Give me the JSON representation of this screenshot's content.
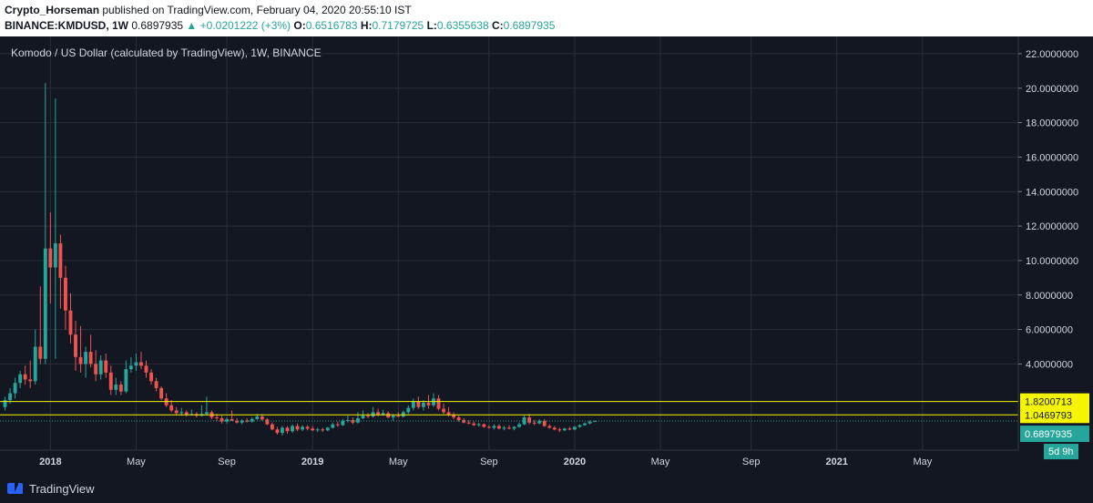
{
  "header": {
    "author": "Crypto_Horseman",
    "published_text": "published on TradingView.com, February 04, 2020 20:55:10 IST",
    "symbol": "BINANCE:KMDUSD, 1W",
    "last": "0.6897935",
    "change": "▲ +0.0201222 (+3%)",
    "o_label": "O:",
    "o_value": "0.6516783",
    "h_label": "H:",
    "h_value": "0.7179725",
    "l_label": "L:",
    "l_value": "0.6355638",
    "c_label": "C:",
    "c_value": "0.6897935"
  },
  "chart_title": "Komodo / US Dollar (calculated by TradingView), 1W, BINANCE",
  "footer": {
    "logo_text": "TradingView"
  },
  "colors": {
    "background": "#131722",
    "grid": "#2a2e39",
    "up": "#26a69a",
    "down": "#ef5350",
    "hline": "#f5f500",
    "axis_text": "#d1d4dc"
  },
  "chart_data": {
    "type": "candlestick",
    "title": "Komodo / US Dollar (calculated by TradingView), 1W, BINANCE",
    "ylim": [
      -1,
      23
    ],
    "y_ticks": [
      {
        "value": 4,
        "label": "4.0000000"
      },
      {
        "value": 6,
        "label": "6.0000000"
      },
      {
        "value": 8,
        "label": "8.0000000"
      },
      {
        "value": 10,
        "label": "10.0000000"
      },
      {
        "value": 12,
        "label": "12.0000000"
      },
      {
        "value": 14,
        "label": "14.0000000"
      },
      {
        "value": 16,
        "label": "16.0000000"
      },
      {
        "value": 18,
        "label": "18.0000000"
      },
      {
        "value": 20,
        "label": "20.0000000"
      },
      {
        "value": 22,
        "label": "22.0000000"
      }
    ],
    "x_ticks": [
      {
        "week": 9,
        "label": "2018",
        "bold": true
      },
      {
        "week": 26,
        "label": "May",
        "bold": false
      },
      {
        "week": 44,
        "label": "Sep",
        "bold": false
      },
      {
        "week": 61,
        "label": "2019",
        "bold": true
      },
      {
        "week": 78,
        "label": "May",
        "bold": false
      },
      {
        "week": 96,
        "label": "Sep",
        "bold": false
      },
      {
        "week": 113,
        "label": "2020",
        "bold": true
      },
      {
        "week": 130,
        "label": "May",
        "bold": false
      },
      {
        "week": 148,
        "label": "Sep",
        "bold": false
      },
      {
        "week": 165,
        "label": "2021",
        "bold": true
      },
      {
        "week": 182,
        "label": "May",
        "bold": false
      }
    ],
    "x_range_weeks": [
      -1,
      201
    ],
    "candles": [
      {
        "o": 1.5,
        "h": 2.1,
        "l": 1.3,
        "c": 1.9
      },
      {
        "o": 1.9,
        "h": 2.6,
        "l": 1.7,
        "c": 2.3
      },
      {
        "o": 2.3,
        "h": 3.2,
        "l": 2.0,
        "c": 2.9
      },
      {
        "o": 2.9,
        "h": 3.6,
        "l": 2.6,
        "c": 3.4
      },
      {
        "o": 3.4,
        "h": 3.9,
        "l": 2.8,
        "c": 3.1
      },
      {
        "o": 3.1,
        "h": 4.2,
        "l": 2.6,
        "c": 3.0
      },
      {
        "o": 3.0,
        "h": 6.0,
        "l": 2.8,
        "c": 5.0
      },
      {
        "o": 5.0,
        "h": 8.5,
        "l": 4.0,
        "c": 4.3
      },
      {
        "o": 4.3,
        "h": 20.3,
        "l": 4.0,
        "c": 10.7
      },
      {
        "o": 10.7,
        "h": 12.8,
        "l": 7.5,
        "c": 9.6
      },
      {
        "o": 9.6,
        "h": 19.4,
        "l": 4.3,
        "c": 11.0
      },
      {
        "o": 11.0,
        "h": 11.5,
        "l": 7.2,
        "c": 9.0
      },
      {
        "o": 9.0,
        "h": 9.7,
        "l": 6.0,
        "c": 7.1
      },
      {
        "o": 7.1,
        "h": 8.1,
        "l": 5.2,
        "c": 5.7
      },
      {
        "o": 5.7,
        "h": 6.5,
        "l": 3.6,
        "c": 4.4
      },
      {
        "o": 4.4,
        "h": 6.2,
        "l": 3.5,
        "c": 4.0
      },
      {
        "o": 4.0,
        "h": 5.0,
        "l": 3.2,
        "c": 4.7
      },
      {
        "o": 4.7,
        "h": 5.7,
        "l": 3.8,
        "c": 4.0
      },
      {
        "o": 4.0,
        "h": 4.8,
        "l": 3.0,
        "c": 3.4
      },
      {
        "o": 3.4,
        "h": 4.5,
        "l": 3.1,
        "c": 4.2
      },
      {
        "o": 4.2,
        "h": 4.6,
        "l": 3.2,
        "c": 3.5
      },
      {
        "o": 3.5,
        "h": 3.9,
        "l": 2.2,
        "c": 2.5
      },
      {
        "o": 2.5,
        "h": 3.2,
        "l": 2.2,
        "c": 2.8
      },
      {
        "o": 2.8,
        "h": 3.0,
        "l": 2.2,
        "c": 2.4
      },
      {
        "o": 2.4,
        "h": 4.2,
        "l": 2.3,
        "c": 3.7
      },
      {
        "o": 3.7,
        "h": 4.4,
        "l": 3.5,
        "c": 3.9
      },
      {
        "o": 3.9,
        "h": 4.6,
        "l": 3.6,
        "c": 4.1
      },
      {
        "o": 4.1,
        "h": 4.7,
        "l": 3.7,
        "c": 3.9
      },
      {
        "o": 3.9,
        "h": 4.2,
        "l": 3.2,
        "c": 3.5
      },
      {
        "o": 3.5,
        "h": 3.7,
        "l": 2.8,
        "c": 3.0
      },
      {
        "o": 3.0,
        "h": 3.2,
        "l": 2.4,
        "c": 2.6
      },
      {
        "o": 2.6,
        "h": 2.7,
        "l": 1.9,
        "c": 2.0
      },
      {
        "o": 2.0,
        "h": 2.3,
        "l": 1.5,
        "c": 1.6
      },
      {
        "o": 1.6,
        "h": 1.9,
        "l": 1.2,
        "c": 1.3
      },
      {
        "o": 1.3,
        "h": 1.5,
        "l": 1.05,
        "c": 1.15
      },
      {
        "o": 1.15,
        "h": 1.45,
        "l": 1.0,
        "c": 1.2
      },
      {
        "o": 1.2,
        "h": 1.3,
        "l": 0.95,
        "c": 1.05
      },
      {
        "o": 1.05,
        "h": 1.35,
        "l": 1.0,
        "c": 1.1
      },
      {
        "o": 1.1,
        "h": 1.2,
        "l": 0.9,
        "c": 1.0
      },
      {
        "o": 1.0,
        "h": 1.6,
        "l": 0.95,
        "c": 1.1
      },
      {
        "o": 1.1,
        "h": 2.1,
        "l": 1.0,
        "c": 1.2
      },
      {
        "o": 1.2,
        "h": 1.3,
        "l": 0.8,
        "c": 0.9
      },
      {
        "o": 0.9,
        "h": 1.1,
        "l": 0.7,
        "c": 0.85
      },
      {
        "o": 0.85,
        "h": 1.0,
        "l": 0.55,
        "c": 0.65
      },
      {
        "o": 0.65,
        "h": 0.9,
        "l": 0.55,
        "c": 0.8
      },
      {
        "o": 0.8,
        "h": 1.3,
        "l": 0.75,
        "c": 0.7
      },
      {
        "o": 0.7,
        "h": 0.85,
        "l": 0.55,
        "c": 0.6
      },
      {
        "o": 0.6,
        "h": 0.8,
        "l": 0.5,
        "c": 0.72
      },
      {
        "o": 0.72,
        "h": 0.85,
        "l": 0.6,
        "c": 0.65
      },
      {
        "o": 0.65,
        "h": 0.9,
        "l": 0.6,
        "c": 0.8
      },
      {
        "o": 0.8,
        "h": 1.1,
        "l": 0.75,
        "c": 0.95
      },
      {
        "o": 0.95,
        "h": 1.1,
        "l": 0.7,
        "c": 0.78
      },
      {
        "o": 0.78,
        "h": 0.85,
        "l": 0.45,
        "c": 0.5
      },
      {
        "o": 0.5,
        "h": 0.6,
        "l": 0.15,
        "c": 0.2
      },
      {
        "o": 0.2,
        "h": 0.35,
        "l": -0.1,
        "c": 0.0
      },
      {
        "o": 0.0,
        "h": 0.4,
        "l": -0.15,
        "c": 0.3
      },
      {
        "o": 0.3,
        "h": 0.4,
        "l": -0.05,
        "c": 0.1
      },
      {
        "o": 0.1,
        "h": 0.5,
        "l": 0.0,
        "c": 0.4
      },
      {
        "o": 0.4,
        "h": 0.55,
        "l": 0.1,
        "c": 0.2
      },
      {
        "o": 0.2,
        "h": 0.45,
        "l": 0.1,
        "c": 0.35
      },
      {
        "o": 0.35,
        "h": 0.45,
        "l": 0.15,
        "c": 0.25
      },
      {
        "o": 0.25,
        "h": 0.4,
        "l": 0.1,
        "c": 0.15
      },
      {
        "o": 0.15,
        "h": 0.3,
        "l": 0.05,
        "c": 0.2
      },
      {
        "o": 0.2,
        "h": 0.3,
        "l": 0.05,
        "c": 0.15
      },
      {
        "o": 0.15,
        "h": 0.35,
        "l": 0.1,
        "c": 0.3
      },
      {
        "o": 0.3,
        "h": 0.6,
        "l": 0.25,
        "c": 0.5
      },
      {
        "o": 0.5,
        "h": 0.65,
        "l": 0.35,
        "c": 0.45
      },
      {
        "o": 0.45,
        "h": 0.8,
        "l": 0.4,
        "c": 0.7
      },
      {
        "o": 0.7,
        "h": 1.0,
        "l": 0.6,
        "c": 0.75
      },
      {
        "o": 0.75,
        "h": 0.9,
        "l": 0.5,
        "c": 0.6
      },
      {
        "o": 0.6,
        "h": 1.2,
        "l": 0.55,
        "c": 0.85
      },
      {
        "o": 0.85,
        "h": 1.3,
        "l": 0.8,
        "c": 1.0
      },
      {
        "o": 1.0,
        "h": 1.15,
        "l": 0.85,
        "c": 0.95
      },
      {
        "o": 0.95,
        "h": 1.5,
        "l": 0.9,
        "c": 1.2
      },
      {
        "o": 1.2,
        "h": 1.4,
        "l": 0.95,
        "c": 1.05
      },
      {
        "o": 1.05,
        "h": 1.35,
        "l": 1.0,
        "c": 1.15
      },
      {
        "o": 1.15,
        "h": 1.25,
        "l": 0.85,
        "c": 0.9
      },
      {
        "o": 0.9,
        "h": 1.1,
        "l": 0.7,
        "c": 1.0
      },
      {
        "o": 1.0,
        "h": 1.2,
        "l": 0.9,
        "c": 0.95
      },
      {
        "o": 0.95,
        "h": 1.3,
        "l": 0.9,
        "c": 1.2
      },
      {
        "o": 1.2,
        "h": 1.6,
        "l": 1.1,
        "c": 1.45
      },
      {
        "o": 1.45,
        "h": 2.0,
        "l": 1.3,
        "c": 1.8
      },
      {
        "o": 1.8,
        "h": 2.1,
        "l": 1.4,
        "c": 1.5
      },
      {
        "o": 1.5,
        "h": 1.9,
        "l": 1.3,
        "c": 1.75
      },
      {
        "o": 1.75,
        "h": 2.2,
        "l": 1.4,
        "c": 1.6
      },
      {
        "o": 1.6,
        "h": 2.3,
        "l": 1.5,
        "c": 2.0
      },
      {
        "o": 2.0,
        "h": 2.2,
        "l": 1.3,
        "c": 1.4
      },
      {
        "o": 1.4,
        "h": 1.7,
        "l": 1.1,
        "c": 1.2
      },
      {
        "o": 1.2,
        "h": 1.5,
        "l": 0.95,
        "c": 1.05
      },
      {
        "o": 1.05,
        "h": 1.2,
        "l": 0.8,
        "c": 0.9
      },
      {
        "o": 0.9,
        "h": 1.0,
        "l": 0.65,
        "c": 0.75
      },
      {
        "o": 0.75,
        "h": 0.85,
        "l": 0.55,
        "c": 0.6
      },
      {
        "o": 0.6,
        "h": 0.75,
        "l": 0.5,
        "c": 0.55
      },
      {
        "o": 0.55,
        "h": 0.65,
        "l": 0.4,
        "c": 0.45
      },
      {
        "o": 0.45,
        "h": 0.6,
        "l": 0.35,
        "c": 0.5
      },
      {
        "o": 0.5,
        "h": 0.55,
        "l": 0.3,
        "c": 0.35
      },
      {
        "o": 0.35,
        "h": 0.45,
        "l": 0.25,
        "c": 0.3
      },
      {
        "o": 0.3,
        "h": 0.5,
        "l": 0.2,
        "c": 0.4
      },
      {
        "o": 0.4,
        "h": 0.5,
        "l": 0.2,
        "c": 0.25
      },
      {
        "o": 0.25,
        "h": 0.4,
        "l": 0.15,
        "c": 0.3
      },
      {
        "o": 0.3,
        "h": 0.45,
        "l": 0.2,
        "c": 0.25
      },
      {
        "o": 0.25,
        "h": 0.4,
        "l": 0.15,
        "c": 0.35
      },
      {
        "o": 0.35,
        "h": 0.6,
        "l": 0.3,
        "c": 0.5
      },
      {
        "o": 0.5,
        "h": 1.0,
        "l": 0.45,
        "c": 0.9
      },
      {
        "o": 0.9,
        "h": 1.1,
        "l": 0.5,
        "c": 0.6
      },
      {
        "o": 0.6,
        "h": 0.75,
        "l": 0.45,
        "c": 0.55
      },
      {
        "o": 0.55,
        "h": 0.8,
        "l": 0.5,
        "c": 0.7
      },
      {
        "o": 0.7,
        "h": 0.8,
        "l": 0.35,
        "c": 0.4
      },
      {
        "o": 0.4,
        "h": 0.5,
        "l": 0.25,
        "c": 0.3
      },
      {
        "o": 0.3,
        "h": 0.4,
        "l": 0.15,
        "c": 0.2
      },
      {
        "o": 0.2,
        "h": 0.3,
        "l": 0.05,
        "c": 0.15
      },
      {
        "o": 0.15,
        "h": 0.3,
        "l": 0.1,
        "c": 0.25
      },
      {
        "o": 0.25,
        "h": 0.35,
        "l": 0.15,
        "c": 0.2
      },
      {
        "o": 0.2,
        "h": 0.4,
        "l": 0.15,
        "c": 0.35
      },
      {
        "o": 0.35,
        "h": 0.5,
        "l": 0.3,
        "c": 0.45
      },
      {
        "o": 0.45,
        "h": 0.6,
        "l": 0.4,
        "c": 0.55
      },
      {
        "o": 0.55,
        "h": 0.72,
        "l": 0.5,
        "c": 0.65
      },
      {
        "o": 0.6516783,
        "h": 0.7179725,
        "l": 0.6355638,
        "c": 0.6897935
      }
    ],
    "hlines": [
      {
        "value": 1.8200713,
        "label": "1.8200713"
      },
      {
        "value": 1.0469793,
        "label": "1.0469793"
      }
    ],
    "last_price": {
      "value": 0.6897935,
      "label": "0.6897935"
    },
    "countdown": "5d 9h"
  }
}
